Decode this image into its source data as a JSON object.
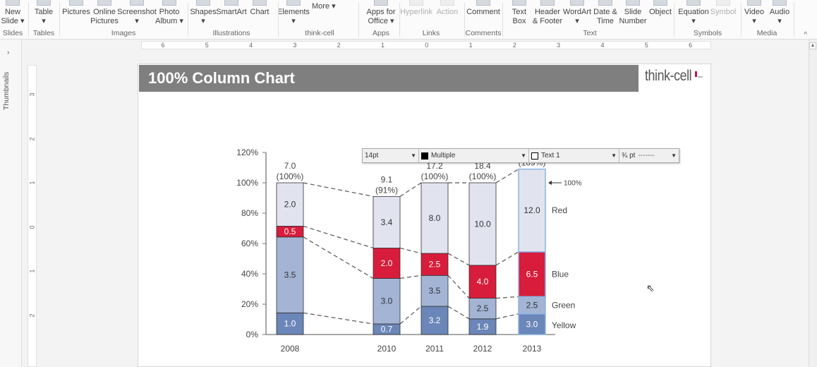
{
  "ribbon": {
    "items": [
      {
        "label": "New",
        "label2": "Slide ▾",
        "icon": "new-slide-icon"
      },
      {
        "label": "Table",
        "label2": "▾",
        "icon": "table-icon"
      },
      {
        "label": "Pictures",
        "label2": "",
        "icon": "pictures-icon"
      },
      {
        "label": "Online",
        "label2": "Pictures",
        "icon": "online-pictures-icon"
      },
      {
        "label": "Screenshot",
        "label2": "▾",
        "icon": "screenshot-icon"
      },
      {
        "label": "Photo",
        "label2": "Album ▾",
        "icon": "photo-album-icon"
      },
      {
        "label": "Shapes",
        "label2": "▾",
        "icon": "shapes-icon"
      },
      {
        "label": "SmartArt",
        "label2": "",
        "icon": "smartart-icon"
      },
      {
        "label": "Chart",
        "label2": "",
        "icon": "chart-icon"
      },
      {
        "label": "Elements",
        "label2": "▾",
        "icon": "elements-icon"
      },
      {
        "label": "Apps for",
        "label2": "Office ▾",
        "icon": "apps-icon"
      },
      {
        "label": "Hyperlink",
        "label2": "",
        "icon": "hyperlink-icon",
        "disabled": true
      },
      {
        "label": "Action",
        "label2": "",
        "icon": "action-icon",
        "disabled": true
      },
      {
        "label": "Comment",
        "label2": "",
        "icon": "comment-icon"
      },
      {
        "label": "Text",
        "label2": "Box",
        "icon": "text-box-icon"
      },
      {
        "label": "Header",
        "label2": "& Footer",
        "icon": "header-footer-icon"
      },
      {
        "label": "WordArt",
        "label2": "▾",
        "icon": "wordart-icon"
      },
      {
        "label": "Date &",
        "label2": "Time",
        "icon": "date-time-icon"
      },
      {
        "label": "Slide",
        "label2": "Number",
        "icon": "slide-number-icon"
      },
      {
        "label": "Object",
        "label2": "",
        "icon": "object-icon"
      },
      {
        "label": "Equation",
        "label2": "▾",
        "icon": "equation-icon"
      },
      {
        "label": "Symbol",
        "label2": "",
        "icon": "symbol-icon",
        "disabled": true
      },
      {
        "label": "Video",
        "label2": "▾",
        "icon": "video-icon"
      },
      {
        "label": "Audio",
        "label2": "▾",
        "icon": "audio-icon"
      }
    ],
    "more_label": "More ▾",
    "groups": [
      "Slides",
      "Tables",
      "Images",
      "Illustrations",
      "think-cell",
      "Apps",
      "Links",
      "Comments",
      "Text",
      "Symbols",
      "Media"
    ],
    "collapse": "^"
  },
  "ruler": {
    "h": [
      "6",
      "5",
      "4",
      "3",
      "2",
      "1",
      "0",
      "1",
      "2",
      "3",
      "4",
      "5",
      "6"
    ],
    "v": [
      "3",
      "2",
      "1",
      "0",
      "1",
      "2"
    ]
  },
  "pane": {
    "thumbnails": "Thumbnails",
    "expand": "›"
  },
  "slide": {
    "title": "100% Column Chart",
    "logo": "think-cell"
  },
  "toolbar": {
    "font_size": "14pt",
    "fill": "Multiple",
    "text_color": "Text 1",
    "line": "¾ pt",
    "line_style": "-------"
  },
  "chart_data": {
    "type": "bar",
    "stacked": "100%",
    "categories": [
      "2008",
      "2010",
      "2011",
      "2012",
      "2013"
    ],
    "column_totals": [
      "7.0",
      "9.1",
      "17.2",
      "18.4",
      null
    ],
    "column_percent_labels": [
      "(100%)",
      "(91%)",
      "(100%)",
      "(100%)",
      "(109%)"
    ],
    "column_percent": [
      100,
      91,
      100,
      100,
      109
    ],
    "series": [
      {
        "name": "Yellow",
        "color": "#6b86b8",
        "text_color": "#ffffff",
        "values": [
          1.0,
          0.7,
          3.2,
          1.9,
          3.0
        ]
      },
      {
        "name": "Green",
        "color": "#a3b4d4",
        "text_color": "#333333",
        "values": [
          3.5,
          3.0,
          3.5,
          2.5,
          2.5
        ]
      },
      {
        "name": "Blue",
        "color": "#d81c3b",
        "text_color": "#ffffff",
        "values": [
          0.5,
          2.0,
          2.5,
          4.0,
          6.5
        ]
      },
      {
        "name": "Red",
        "color": "#e1e4ef",
        "text_color": "#333333",
        "values": [
          2.0,
          3.4,
          8.0,
          10.0,
          12.0
        ]
      }
    ],
    "yticks": [
      "0%",
      "20%",
      "40%",
      "60%",
      "80%",
      "100%",
      "120%"
    ],
    "ylim": [
      0,
      120
    ],
    "reference_label": "100%",
    "selected_category": "2013",
    "connectors": "dashed"
  }
}
